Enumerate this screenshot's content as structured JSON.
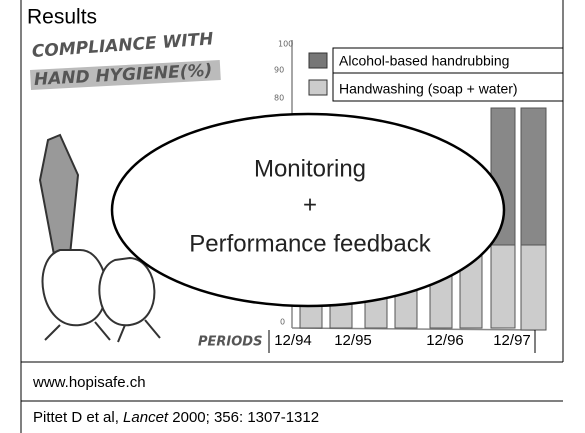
{
  "header": {
    "title": "Results"
  },
  "cartoon": {
    "heading": [
      "COMPLIANCE WITH",
      "HAND HYGIENE(%)"
    ],
    "y_axis_labels": [
      "100",
      "90",
      "80",
      "0"
    ],
    "x_axis_title": "PERIODS",
    "x_axis_labels": [
      "12/94",
      "12/95",
      "12/96",
      "12/97"
    ],
    "legend": [
      "Alcohol-based handrubbing",
      "Handwashing (soap + water)"
    ]
  },
  "callout": {
    "lines": [
      "Monitoring",
      "+",
      "Performance feedback"
    ]
  },
  "footer": {
    "link": "www.hopisafe.ch",
    "citation": {
      "authors": "Pittet D et al, ",
      "journal": "Lancet",
      "details": " 2000; 356: 1307-1312"
    }
  }
}
